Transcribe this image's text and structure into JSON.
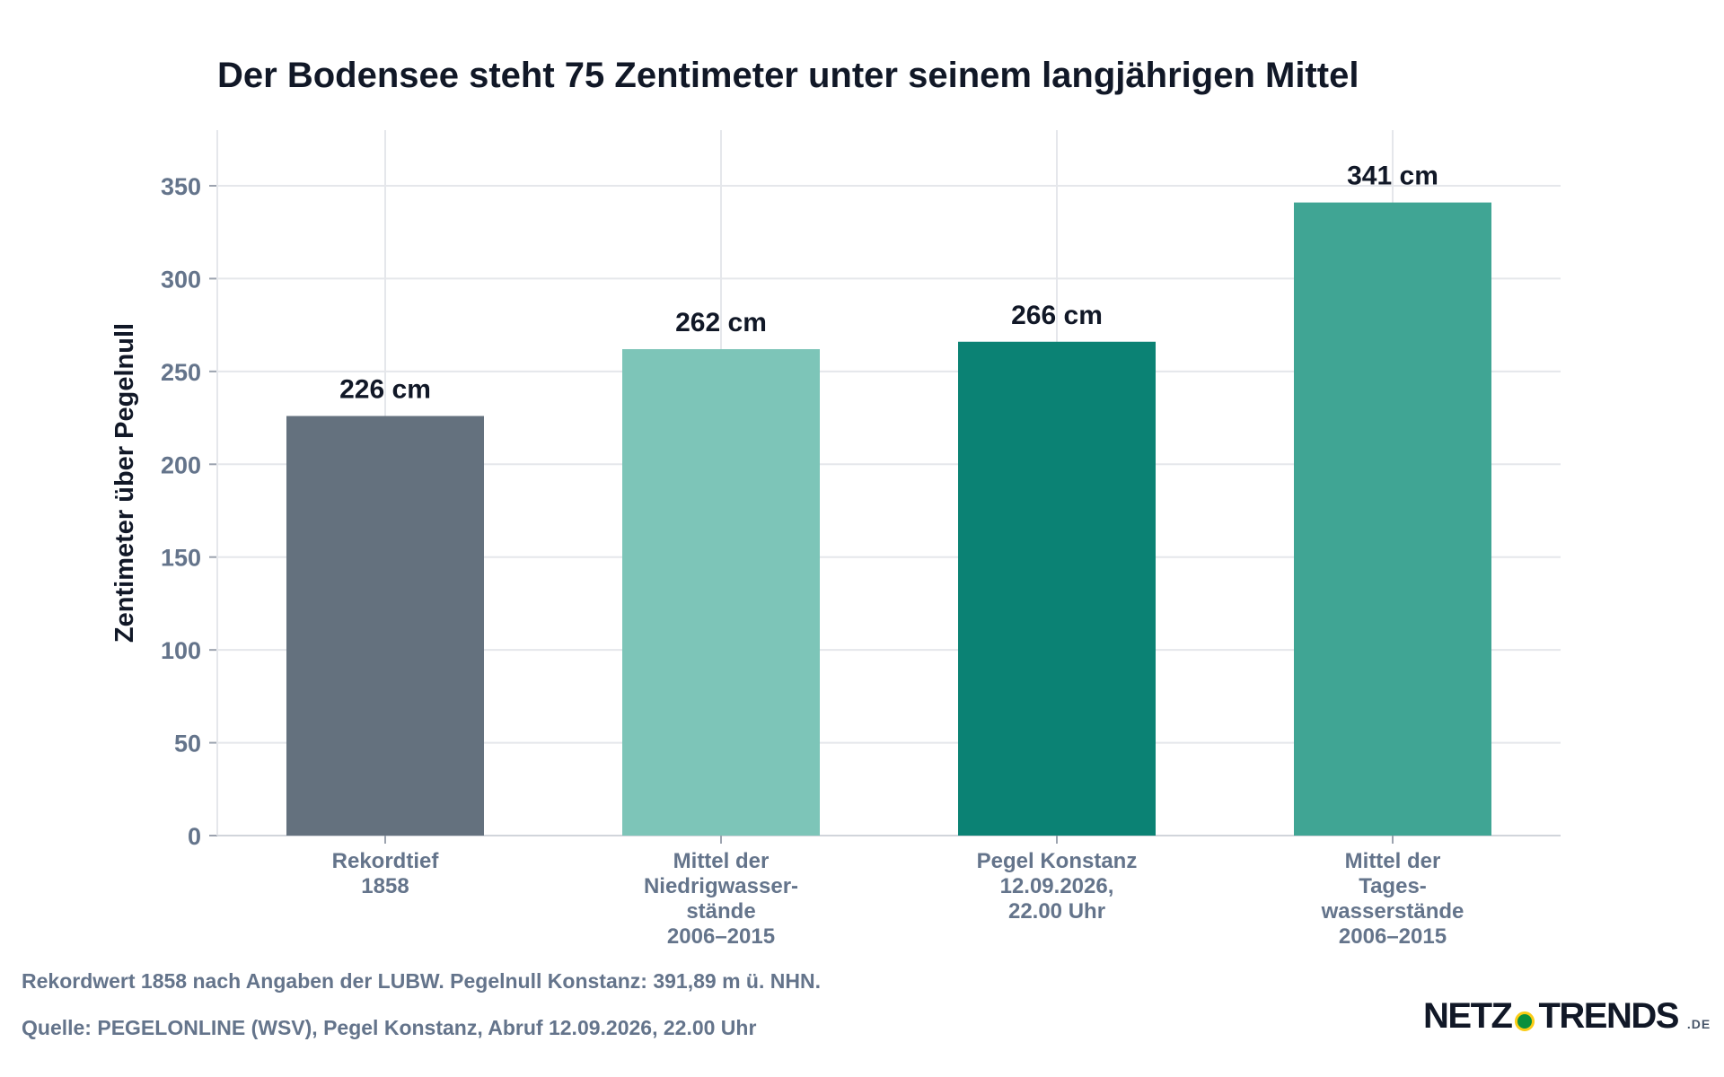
{
  "chart_data": {
    "type": "bar",
    "title": "Der Bodensee steht 75 Zentimeter unter seinem langjährigen Mittel",
    "ylabel": "Zentimeter über Pegelnull",
    "xlabel": "",
    "ylim": [
      0,
      380
    ],
    "yticks": [
      0,
      50,
      100,
      150,
      200,
      250,
      300,
      350
    ],
    "grid": true,
    "categories": [
      [
        "Rekordtief",
        "1858"
      ],
      [
        "Mittel der",
        "Niedrigwasser-",
        "stände",
        "2006–2015"
      ],
      [
        "Pegel Konstanz",
        "12.09.2026,",
        "22.00 Uhr"
      ],
      [
        "Mittel der",
        "Tages-",
        "wasserstände",
        "2006–2015"
      ]
    ],
    "values": [
      226,
      262,
      266,
      341
    ],
    "value_labels": [
      "226 cm",
      "262 cm",
      "266 cm",
      "341 cm"
    ],
    "colors": [
      "#64717e",
      "#7dc5b8",
      "#0b8274",
      "#40a594"
    ]
  },
  "footnotes": {
    "note": "Rekordwert 1858 nach Angaben der LUBW. Pegelnull Konstanz: 391,89 m ü. NHN.",
    "source": "Quelle: PEGELONLINE (WSV), Pegel Konstanz, Abruf 12.09.2026, 22.00 Uhr"
  },
  "logo": {
    "left": "NETZ",
    "right": "TRENDS",
    "tld": ".DE"
  }
}
